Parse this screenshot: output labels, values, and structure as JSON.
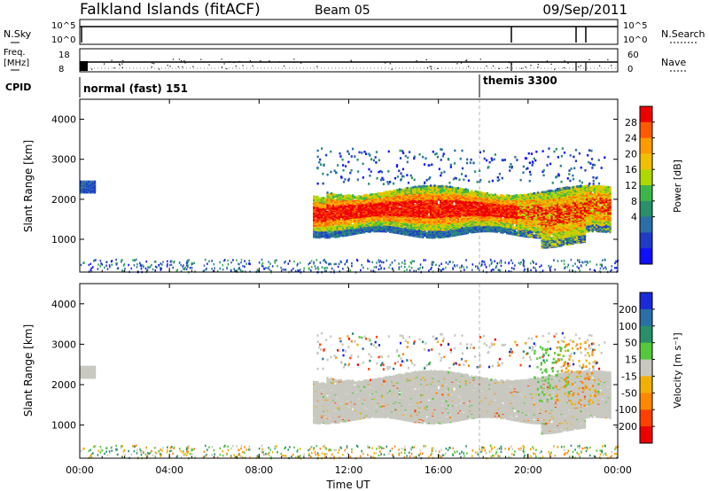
{
  "header": {
    "station": "Falkland Islands (fitACF)",
    "beam": "Beam 05",
    "date": "09/Sep/2011"
  },
  "sky_panel": {
    "left_label": "N.Sky",
    "right_label": "N.Search",
    "left_ticks": [
      "10^5",
      "10^0"
    ],
    "right_ticks": [
      "10^5",
      "10^0"
    ]
  },
  "freq_panel": {
    "left_label_line1": "Freq.",
    "left_label_line2": "[MHz]",
    "right_label": "Nave",
    "left_ticks": [
      "18",
      "8"
    ],
    "right_ticks": [
      "60",
      "0"
    ]
  },
  "cpid": {
    "label": "CPID",
    "segments": [
      {
        "name": "normal (fast) 151",
        "start_hour": 0
      },
      {
        "name": "themis 3300",
        "start_hour": 18
      }
    ]
  },
  "chart_data": [
    {
      "type": "heatmap",
      "name": "Power",
      "ylabel": "Slant Range [km]",
      "xlabel": "Time UT",
      "xlim_hours": [
        0,
        24
      ],
      "ylim_km": [
        180,
        4500
      ],
      "yticks": [
        1000,
        2000,
        3000,
        4000
      ],
      "colorbar_label": "Power [dB]",
      "colorbar_ticks": [
        "28",
        "24",
        "20",
        "16",
        "12",
        "8",
        "4"
      ],
      "colorbar_colors": [
        "#ee0000",
        "#ff5a00",
        "#ff9a00",
        "#f0c000",
        "#b0d800",
        "#3cb64a",
        "#2a8f6b",
        "#2a6fa8",
        "#1e3cc8",
        "#1010ff"
      ],
      "echo_regions": [
        {
          "t_start": 10.4,
          "t_end": 23.6,
          "range_low": 1000,
          "range_high": 2300,
          "peak_db": 28
        },
        {
          "t_start": 0.0,
          "t_end": 0.7,
          "range_low": 2200,
          "range_high": 2500,
          "peak_db": 8
        },
        {
          "t_start": 0.0,
          "t_end": 24.0,
          "range_low": 180,
          "range_high": 450,
          "peak_db": 8
        }
      ]
    },
    {
      "type": "heatmap",
      "name": "Velocity",
      "ylabel": "Slant Range [km]",
      "xlabel": "Time UT",
      "xlim_hours": [
        0,
        24
      ],
      "ylim_km": [
        180,
        4500
      ],
      "yticks": [
        1000,
        2000,
        3000,
        4000
      ],
      "colorbar_label": "Velocity [m s⁻¹]",
      "colorbar_ticks": [
        "200",
        "100",
        "50",
        "15",
        "-15",
        "-50",
        "-100",
        "-200"
      ],
      "colorbar_colors": [
        "#1a2ad8",
        "#2a6fa8",
        "#2a8f6b",
        "#55c83c",
        "#c8c8c0",
        "#f0b000",
        "#ff8800",
        "#ff4000",
        "#ee0000"
      ],
      "ground_scatter_color": "#c8c8c0"
    }
  ],
  "time_axis": {
    "label": "Time UT",
    "ticks": [
      "00:00",
      "04:00",
      "08:00",
      "12:00",
      "16:00",
      "20:00",
      "00:00"
    ]
  }
}
